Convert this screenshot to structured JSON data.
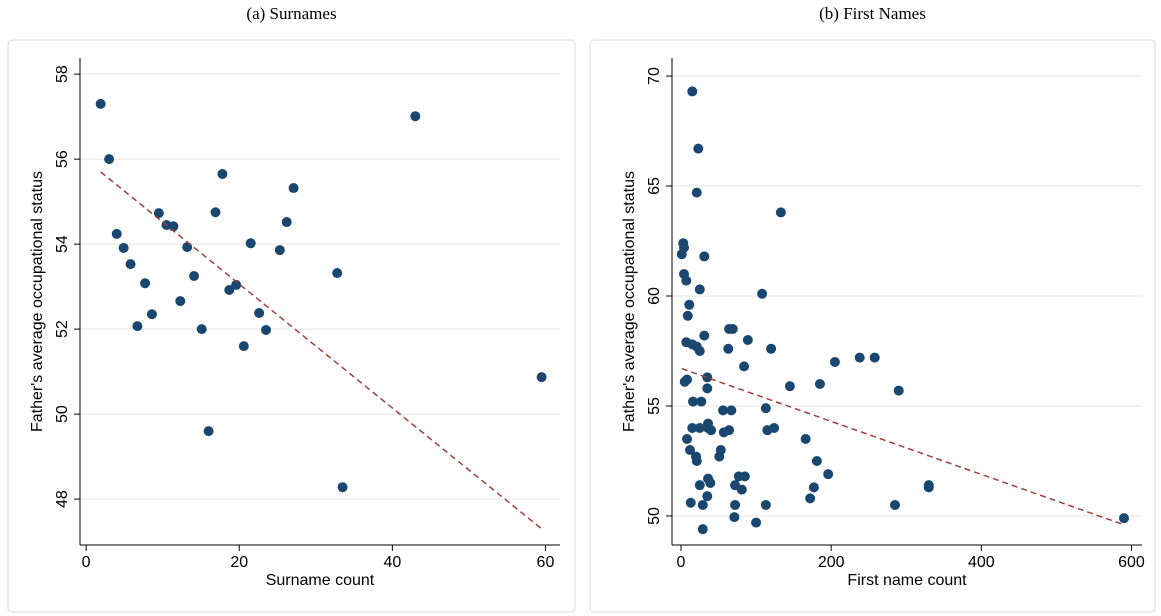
{
  "chart_data": [
    {
      "type": "scatter",
      "title": "(a) Surnames",
      "xlabel": "Surname count",
      "ylabel": "Father's average occupational status",
      "color": "#1a476f",
      "grid": true,
      "x": [
        1.9,
        3.0,
        4.0,
        4.9,
        5.8,
        6.7,
        7.7,
        8.6,
        9.5,
        10.5,
        11.4,
        12.3,
        13.2,
        14.1,
        15.1,
        16.0,
        16.9,
        17.8,
        18.7,
        19.6,
        21.5,
        20.6,
        22.6,
        23.5,
        25.3,
        26.2,
        27.1,
        32.8,
        33.5,
        43.0,
        59.5
      ],
      "y": [
        57.3,
        56.0,
        54.24,
        53.91,
        53.53,
        52.07,
        53.08,
        52.35,
        54.73,
        54.45,
        54.42,
        52.66,
        53.93,
        53.25,
        52.0,
        49.6,
        54.75,
        55.65,
        52.92,
        53.04,
        54.02,
        51.6,
        52.38,
        51.98,
        53.86,
        54.52,
        55.32,
        53.32,
        48.28,
        57.01,
        50.87
      ],
      "fit_line": {
        "color": "#a0403a",
        "x": [
          1.9,
          59.5
        ],
        "y": [
          55.7,
          47.3
        ]
      },
      "xlim": [
        -0.8,
        61.9
      ],
      "ylim": [
        46.92,
        58.38
      ],
      "xticks": [
        0,
        20,
        40,
        60
      ],
      "yticks": [
        48,
        50,
        52,
        54,
        56,
        58
      ]
    },
    {
      "type": "scatter",
      "title": "(b) First Names",
      "xlabel": "First name count",
      "ylabel": "Father's average occupational status",
      "color": "#1a476f",
      "grid": true,
      "x": [
        3,
        4,
        1,
        4,
        7,
        11,
        9,
        15,
        23,
        21,
        133,
        31,
        108,
        25,
        7,
        15,
        21,
        25,
        31,
        64,
        69,
        89,
        63,
        120,
        84,
        205,
        238,
        258,
        290,
        185,
        145,
        35,
        35,
        8,
        5,
        16,
        27,
        56,
        67,
        113,
        15,
        25,
        36,
        8,
        36,
        40,
        57,
        64,
        115,
        124,
        166,
        53,
        12,
        51,
        20,
        21,
        181,
        196,
        36,
        39,
        77,
        85,
        25,
        177,
        72,
        81,
        330,
        330,
        35,
        172,
        13,
        29,
        72,
        113,
        285,
        71,
        100,
        29,
        590
      ],
      "y": [
        62.4,
        62.2,
        61.9,
        61.0,
        60.7,
        59.6,
        59.1,
        69.3,
        66.7,
        64.7,
        63.8,
        61.8,
        60.1,
        60.3,
        57.9,
        57.8,
        57.7,
        57.5,
        58.2,
        58.5,
        58.5,
        58.0,
        57.6,
        57.6,
        56.8,
        57.0,
        57.2,
        57.2,
        55.7,
        56.0,
        55.9,
        56.3,
        55.8,
        56.2,
        56.1,
        55.2,
        55.2,
        54.8,
        54.8,
        54.9,
        54.0,
        54.0,
        54.0,
        53.5,
        54.2,
        53.9,
        53.8,
        53.9,
        53.9,
        54.0,
        53.5,
        53.0,
        53.0,
        52.7,
        52.7,
        52.5,
        52.5,
        51.9,
        51.7,
        51.5,
        51.8,
        51.8,
        51.4,
        51.3,
        51.4,
        51.2,
        51.4,
        51.3,
        50.9,
        50.8,
        50.6,
        50.5,
        50.5,
        50.5,
        50.5,
        49.95,
        49.7,
        49.4,
        49.9
      ],
      "fit_line": {
        "color": "#a0403a",
        "x": [
          1,
          590
        ],
        "y": [
          56.7,
          49.6
        ]
      },
      "xlim": [
        -12,
        614
      ],
      "ylim": [
        48.68,
        70.82
      ],
      "xticks": [
        0,
        200,
        400,
        600
      ],
      "yticks": [
        50,
        55,
        60,
        65,
        70
      ]
    }
  ]
}
